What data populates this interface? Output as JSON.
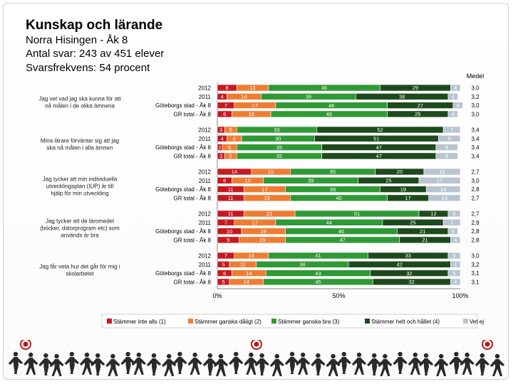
{
  "header": {
    "title": "Kunskap och lärande",
    "line1": "Norra Hisingen - Åk 8",
    "line2": "Antal svar: 243 av 451 elever",
    "line3": "Svarsfrekvens: 54 procent"
  },
  "chart_data": {
    "type": "bar",
    "orientation": "horizontal-stacked-100",
    "mean_header": "Medel",
    "x_ticks": [
      "0%",
      "50%",
      "100%"
    ],
    "colors": [
      "#c8191e",
      "#ee7d32",
      "#2f9a35",
      "#1d4a1d",
      "#b9c4d2"
    ],
    "legend": [
      "Stämmer inte alls (1)",
      "Stämmer ganska dåligt (2)",
      "Stämmer ganska bra (3)",
      "Stämmer helt och hållet (4)",
      "Vet ej"
    ],
    "groups": [
      {
        "question": "Jag vet vad jag ska kunna för att nå målen i de olika ämnena",
        "rows": [
          {
            "label": "2012",
            "values": [
              8,
              13,
              46,
              29,
              4
            ],
            "mean": "3,0"
          },
          {
            "label": "2011",
            "values": [
              4,
              14,
              39,
              38,
              4
            ],
            "mean": "3,2"
          },
          {
            "label": "Göteborgs stad - Åk 8",
            "values": [
              7,
              17,
              46,
              27,
              4
            ],
            "mean": "3,0"
          },
          {
            "label": "GR total - Åk 8",
            "values": [
              6,
              16,
              48,
              25,
              4
            ],
            "mean": "3,0"
          }
        ]
      },
      {
        "question": "Mina lärare förväntar sig att jag ska nå målen i alla ämnen",
        "rows": [
          {
            "label": "2012",
            "values": [
              3,
              5,
              33,
              52,
              7
            ],
            "mean": "3,4"
          },
          {
            "label": "2011",
            "values": [
              4,
              6,
              30,
              51,
              9
            ],
            "mean": "3,4"
          },
          {
            "label": "Göteborgs stad - Åk 8",
            "values": [
              2,
              6,
              35,
              47,
              9
            ],
            "mean": "3,4"
          },
          {
            "label": "GR total - Åk 8",
            "values": [
              3,
              5,
              35,
              47,
              9
            ],
            "mean": "3,4"
          }
        ]
      },
      {
        "question": "Jag tycker att min individuella utvecklingsplan (IUP) är till hjälp för min utveckling",
        "rows": [
          {
            "label": "2012",
            "values": [
              14,
              16,
              35,
              20,
              15
            ],
            "mean": "2,7"
          },
          {
            "label": "2011",
            "values": [
              6,
              13,
              39,
              25,
              17
            ],
            "mean": "3,0"
          },
          {
            "label": "Göteborgs stad - Åk 8",
            "values": [
              11,
              17,
              39,
              19,
              14
            ],
            "mean": "2,8"
          },
          {
            "label": "GR total - Åk 8",
            "values": [
              11,
              19,
              40,
              17,
              13
            ],
            "mean": "2,7"
          }
        ]
      },
      {
        "question": "Jag tycker att de läromedel (böcker, datorprogram etc) som används är bra",
        "rows": [
          {
            "label": "2012",
            "values": [
              11,
              21,
              51,
              12,
              5
            ],
            "mean": "2,7"
          },
          {
            "label": "2011",
            "values": [
              7,
              17,
              44,
              25,
              7
            ],
            "mean": "2,9"
          },
          {
            "label": "Göteborgs stad - Åk 8",
            "values": [
              10,
              18,
              46,
              21,
              4
            ],
            "mean": "2,8"
          },
          {
            "label": "GR total - Åk 8",
            "values": [
              9,
              19,
              47,
              21,
              4
            ],
            "mean": "2,8"
          }
        ]
      },
      {
        "question": "Jag får veta hur det går för mig i skolarbetet",
        "rows": [
          {
            "label": "2012",
            "values": [
              7,
              14,
              41,
              33,
              5
            ],
            "mean": "3,0"
          },
          {
            "label": "2011",
            "values": [
              5,
              11,
              38,
              42,
              4
            ],
            "mean": "3,2"
          },
          {
            "label": "Göteborgs stad - Åk 8",
            "values": [
              6,
              14,
              43,
              32,
              5
            ],
            "mean": "3,1"
          },
          {
            "label": "GR total - Åk 8",
            "values": [
              5,
              14,
              45,
              32,
              4
            ],
            "mean": "3,1"
          }
        ]
      }
    ]
  }
}
